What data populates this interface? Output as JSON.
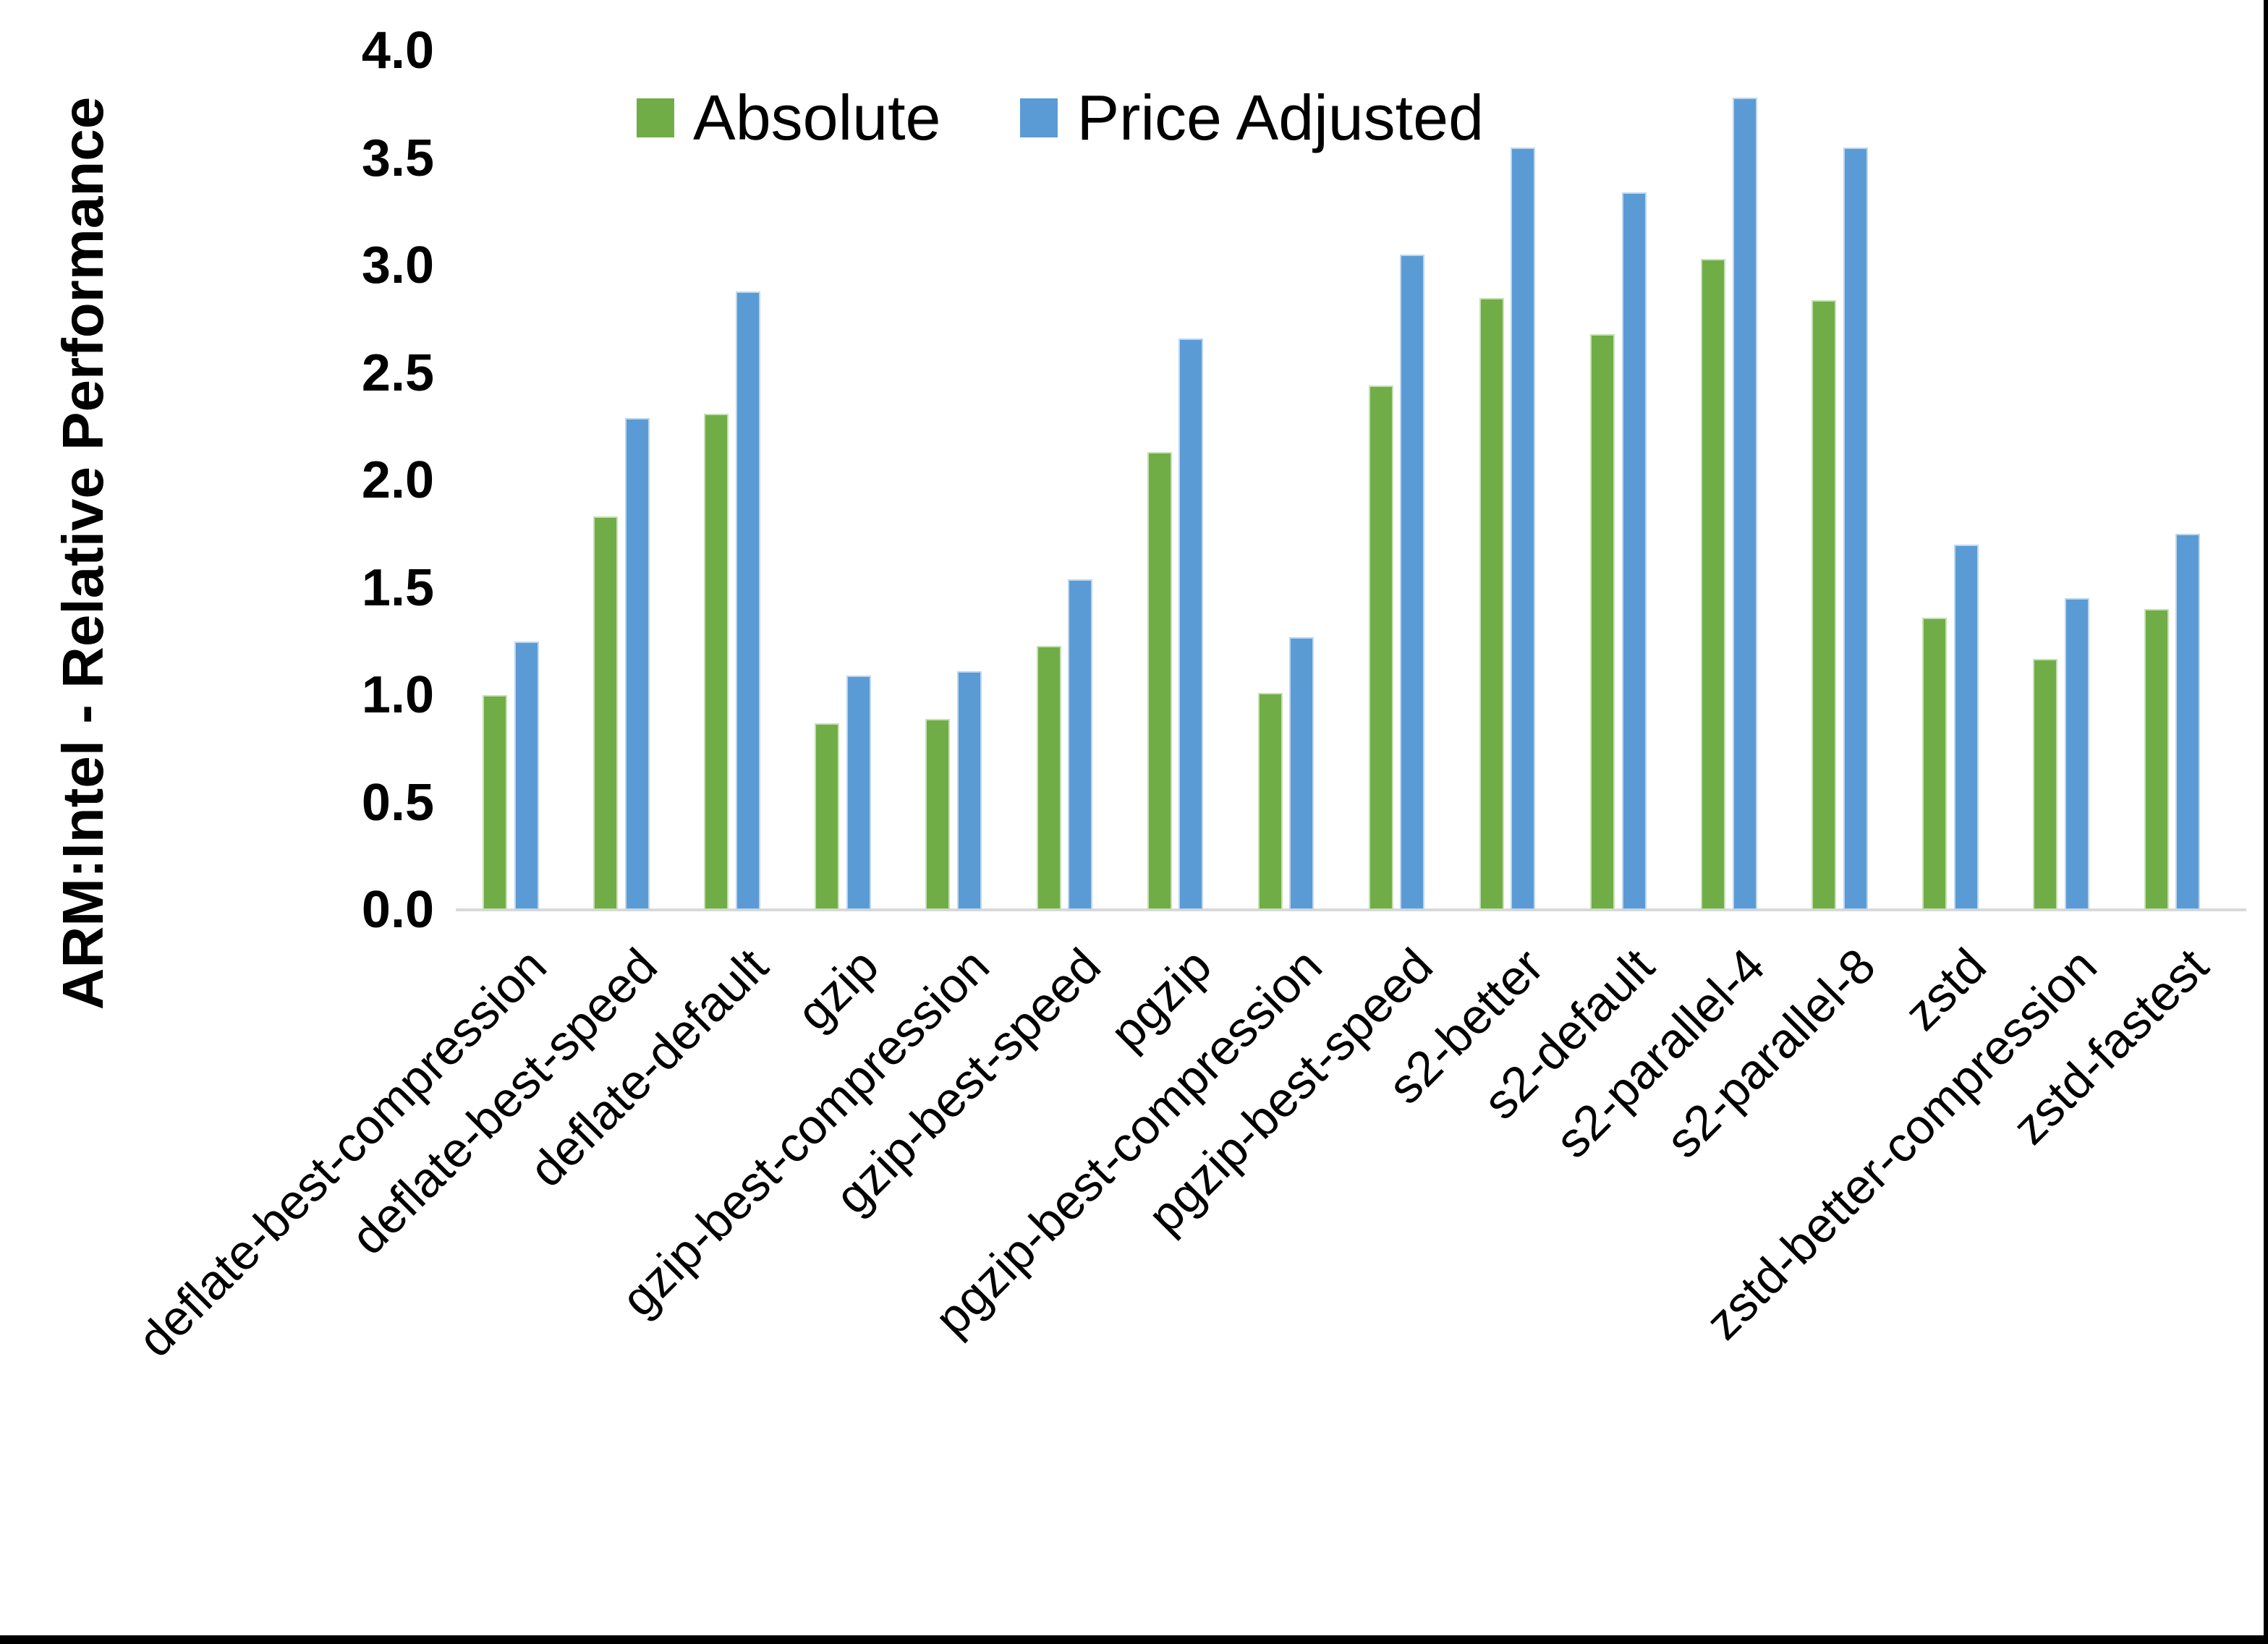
{
  "chart_data": {
    "type": "bar",
    "title": "",
    "ylabel": "ARM:Intel - Relative Performance",
    "xlabel": "",
    "ylim": [
      0.0,
      4.0
    ],
    "ytick_step": 0.5,
    "ytick_labels": [
      "0.0",
      "0.5",
      "1.0",
      "1.5",
      "2.0",
      "2.5",
      "3.0",
      "3.5",
      "4.0"
    ],
    "grid": false,
    "legend_position": "top-center",
    "axis_line_color": "#d9d9d9",
    "categories": [
      "deflate-best-compression",
      "deflate-best-speed",
      "deflate-default",
      "gzip",
      "gzip-best-compression",
      "gzip-best-speed",
      "pgzip",
      "pgzip-best-compression",
      "pgzip-best-speed",
      "s2-better",
      "s2-default",
      "s2-parallel-4",
      "s2-parallel-8",
      "zstd",
      "zstd-better-compression",
      "zstd-fastest"
    ],
    "series": [
      {
        "name": "Absolute",
        "color": "#70AD47",
        "values": [
          1.0,
          1.83,
          2.31,
          0.87,
          0.89,
          1.23,
          2.13,
          1.01,
          2.44,
          2.85,
          2.68,
          3.03,
          2.84,
          1.36,
          1.17,
          1.4
        ]
      },
      {
        "name": "Price Adjusted",
        "color": "#5B9BD5",
        "values": [
          1.25,
          2.29,
          2.88,
          1.09,
          1.11,
          1.54,
          2.66,
          1.27,
          3.05,
          3.55,
          3.34,
          3.78,
          3.55,
          1.7,
          1.45,
          1.75
        ]
      }
    ]
  }
}
